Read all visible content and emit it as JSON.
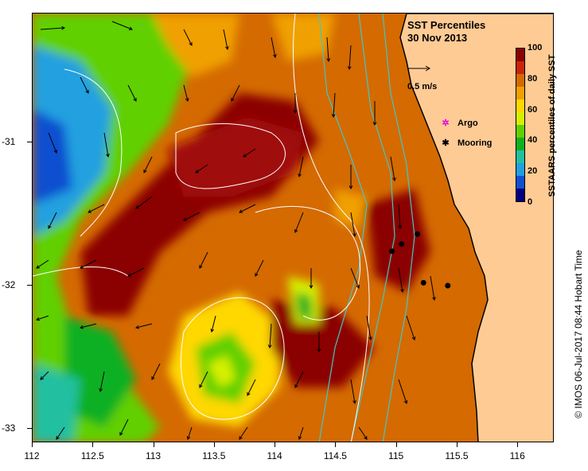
{
  "title": "SST Percentiles",
  "date": "30 Nov 2013",
  "velocity_scale_label": "0.5 m/s",
  "legend": {
    "argo_label": "Argo",
    "argo_symbol": "✲",
    "argo_color": "#e000e0",
    "mooring_label": "Mooring",
    "mooring_symbol": "✱",
    "mooring_color": "#000000"
  },
  "colorbar": {
    "title": "SSTAARS percentiles of daily SST",
    "tick_labels": [
      "100",
      "80",
      "60",
      "40",
      "20",
      "0"
    ],
    "colors": [
      "#8b0000",
      "#c8260a",
      "#d46a00",
      "#f0a000",
      "#ffd800",
      "#d8f000",
      "#60d000",
      "#10b020",
      "#20c0a0",
      "#20a0e0",
      "#1050d0",
      "#000080"
    ]
  },
  "axes": {
    "x_ticks": [
      "112",
      "112.5",
      "113",
      "113.5",
      "114",
      "114.5",
      "115",
      "115.5",
      "116"
    ],
    "y_ticks": [
      "-31",
      "-32",
      "-33"
    ]
  },
  "land_color": "#ffcb94",
  "credit": "© IMOS 06-Jul-2017 08:44 Hobart Time",
  "chart_data": {
    "type": "heatmap",
    "title": "SST Percentiles",
    "subtitle": "30 Nov 2013",
    "xlim": [
      112,
      116.3
    ],
    "ylim": [
      -33.1,
      -30.1
    ],
    "x_ticks": [
      112,
      112.5,
      113,
      113.5,
      114,
      114.5,
      115,
      115.5,
      116
    ],
    "y_ticks": [
      -31,
      -32,
      -33
    ],
    "colorbar_range": [
      0,
      100
    ],
    "colorbar_ticks": [
      0,
      20,
      40,
      60,
      80,
      100
    ],
    "colorbar_label": "SSTAARS percentiles of daily SST",
    "moorings": [
      {
        "lon": 114.96,
        "lat": -31.76
      },
      {
        "lon": 115.04,
        "lat": -31.71
      },
      {
        "lon": 115.17,
        "lat": -31.64
      },
      {
        "lon": 115.22,
        "lat": -31.98
      },
      {
        "lon": 115.42,
        "lat": -32.0
      }
    ]
  }
}
